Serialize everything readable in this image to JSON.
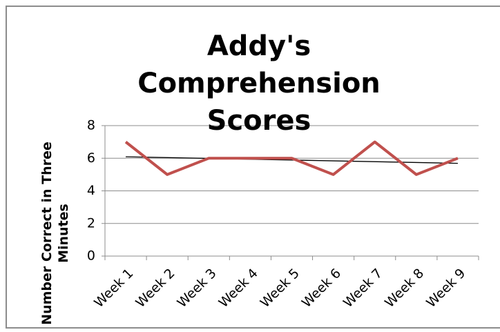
{
  "chart_data": {
    "type": "line",
    "title": "Addy's Comprehension Scores",
    "ylabel": "Number Correct in Three Minutes",
    "categories": [
      "Week 1",
      "Week 2",
      "Week 3",
      "Week 4",
      "Week 5",
      "Week 6",
      "Week 7",
      "Week 8",
      "Week 9"
    ],
    "values": [
      7,
      5,
      6,
      6,
      6,
      5,
      7,
      5,
      6
    ],
    "color": "#c0504d",
    "trendline": "linear",
    "trendline_color": "#000000",
    "ylim": [
      0,
      8
    ],
    "yticks": [
      0,
      2,
      4,
      6,
      8
    ],
    "grid": true
  }
}
